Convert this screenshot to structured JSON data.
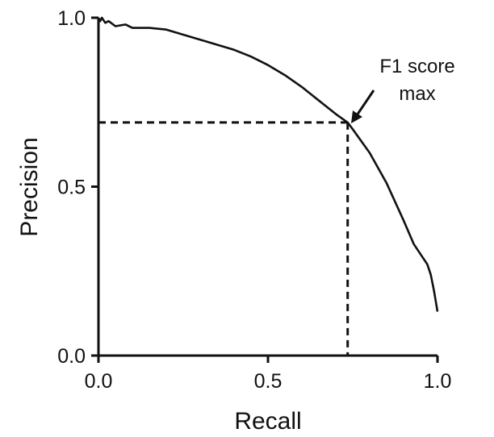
{
  "chart_data": {
    "type": "line",
    "xlabel": "Recall",
    "ylabel": "Precision",
    "xlim": [
      0.0,
      1.0
    ],
    "ylim": [
      0.0,
      1.0
    ],
    "x_ticks": [
      "0.0",
      "0.5",
      "1.0"
    ],
    "y_ticks": [
      "0.0",
      "0.5",
      "1.0"
    ],
    "grid": false,
    "series": [
      {
        "x": [
          0.0,
          0.005,
          0.01,
          0.02,
          0.03,
          0.05,
          0.08,
          0.1,
          0.15,
          0.2,
          0.25,
          0.3,
          0.35,
          0.4,
          0.45,
          0.5,
          0.55,
          0.6,
          0.65,
          0.7,
          0.735,
          0.75,
          0.8,
          0.85,
          0.9,
          0.93,
          0.95,
          0.97,
          0.98,
          0.99,
          1.0
        ],
        "y": [
          1.0,
          0.99,
          1.0,
          0.985,
          0.99,
          0.975,
          0.98,
          0.97,
          0.97,
          0.965,
          0.95,
          0.935,
          0.92,
          0.905,
          0.885,
          0.86,
          0.83,
          0.795,
          0.755,
          0.715,
          0.69,
          0.67,
          0.6,
          0.51,
          0.4,
          0.33,
          0.3,
          0.27,
          0.24,
          0.19,
          0.13
        ]
      }
    ],
    "annotations": {
      "f1_max": {
        "x": 0.735,
        "y": 0.69,
        "label_line1": "F1 score",
        "label_line2": "max"
      }
    }
  }
}
